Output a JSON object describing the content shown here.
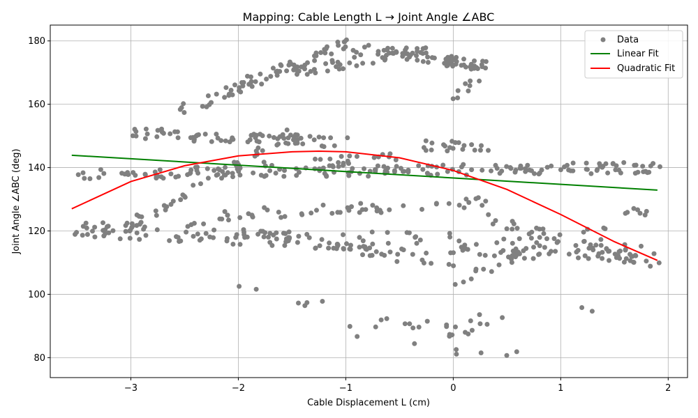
{
  "chart_data": {
    "type": "scatter",
    "title": "Mapping: Cable Length L → Joint Angle ∠ABC",
    "xlabel": "Cable Displacement L (cm)",
    "ylabel": "Joint Angle ∠ABC (deg)",
    "xlim": [
      -3.75,
      2.18
    ],
    "ylim": [
      73.7,
      185
    ],
    "xticks": [
      -3,
      -2,
      -1,
      0,
      1,
      2
    ],
    "xtick_labels": [
      "−3",
      "−2",
      "−1",
      "0",
      "1",
      "2"
    ],
    "yticks": [
      80,
      100,
      120,
      140,
      160,
      180
    ],
    "ytick_labels": [
      "80",
      "100",
      "120",
      "140",
      "160",
      "180"
    ],
    "grid": true,
    "legend_position": "top-right",
    "colors": {
      "data": "#808080",
      "linear": "#008000",
      "quadratic": "#ff0000",
      "grid": "#b0b0b0"
    },
    "series": [
      {
        "name": "Data",
        "kind": "scatter",
        "bands": [
          {
            "x_start": -3.55,
            "x_end": 1.9,
            "y_start": 138,
            "y_end": 140,
            "count": 180
          },
          {
            "x_start": -3.55,
            "x_end": 1.9,
            "y_start": 120,
            "y_end": 111,
            "count": 110
          },
          {
            "x_start": -3.4,
            "x_end": 1.9,
            "y_start": 122,
            "y_end": 115,
            "count": 60
          },
          {
            "x_start": -3.0,
            "x_end": -1.0,
            "y_start": 151,
            "y_end": 148,
            "count": 70
          },
          {
            "x_start": -2.6,
            "x_end": -1.0,
            "y_start": 157,
            "y_end": 179,
            "count": 60
          },
          {
            "x_start": -1.0,
            "x_end": 0.3,
            "y_start": 178,
            "y_end": 172,
            "count": 70
          },
          {
            "x_start": -2.0,
            "x_end": -0.2,
            "y_start": 167,
            "y_end": 178,
            "count": 40
          },
          {
            "x_start": -3.0,
            "x_end": -1.5,
            "y_start": 122,
            "y_end": 151,
            "count": 40
          },
          {
            "x_start": -2.2,
            "x_end": 0.3,
            "y_start": 125,
            "y_end": 129,
            "count": 50
          },
          {
            "x_start": -2.0,
            "x_end": 0.0,
            "y_start": 120,
            "y_end": 109,
            "count": 40
          },
          {
            "x_start": 0.3,
            "x_end": 1.9,
            "y_start": 124,
            "y_end": 109,
            "count": 40
          },
          {
            "x_start": 0.0,
            "x_end": 1.9,
            "y_start": 104,
            "y_end": 128,
            "count": 30
          },
          {
            "x_start": -2.1,
            "x_end": 0.2,
            "y_start": 102,
            "y_end": 87,
            "count": 18
          },
          {
            "x_start": -1.0,
            "x_end": 1.5,
            "y_start": 88,
            "y_end": 96,
            "count": 14
          },
          {
            "x_start": -0.6,
            "x_end": 0.6,
            "y_start": 84,
            "y_end": 80,
            "count": 6
          },
          {
            "x_start": -0.3,
            "x_end": 0.3,
            "y_start": 147,
            "y_end": 147,
            "count": 20
          },
          {
            "x_start": 0.0,
            "x_end": 0.3,
            "y_start": 160,
            "y_end": 172,
            "count": 10
          },
          {
            "x_start": -1.8,
            "x_end": -0.5,
            "y_start": 141,
            "y_end": 143,
            "count": 20
          }
        ]
      },
      {
        "name": "Linear Fit",
        "kind": "line",
        "x": [
          -3.55,
          1.9
        ],
        "y": [
          143.9,
          132.9
        ]
      },
      {
        "name": "Quadratic Fit",
        "kind": "line",
        "x": [
          -3.55,
          -3.0,
          -2.5,
          -2.0,
          -1.5,
          -1.25,
          -1.0,
          -0.5,
          0.0,
          0.5,
          1.0,
          1.5,
          1.9
        ],
        "y": [
          127.0,
          135.6,
          140.6,
          143.7,
          145.0,
          145.2,
          145.0,
          143.1,
          139.1,
          133.1,
          125.2,
          116.6,
          110.7
        ]
      }
    ]
  }
}
